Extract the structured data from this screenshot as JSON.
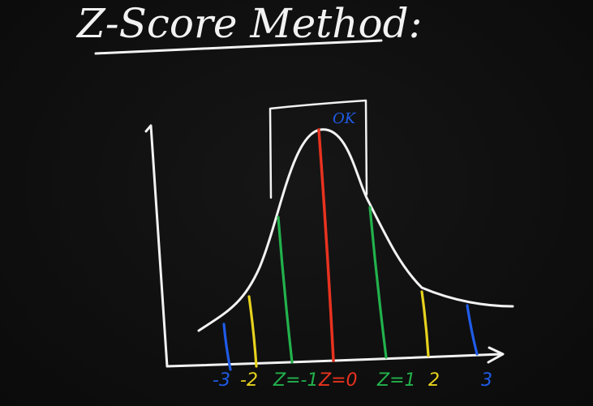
{
  "title": "Z-Score Method:",
  "box_label": "OK",
  "colors": {
    "background": "#0f0f0f",
    "chalk": "#f2f2f2",
    "red": "#e8321f",
    "green": "#22b24c",
    "yellow": "#e6d21e",
    "blue": "#1f5ce8"
  },
  "markers": [
    {
      "z": -3,
      "label": "-3",
      "color": "blue"
    },
    {
      "z": -2,
      "label": "-2",
      "color": "yellow"
    },
    {
      "z": -1,
      "label": "Z=-1",
      "color": "green"
    },
    {
      "z": 0,
      "label": "Z=0",
      "color": "red"
    },
    {
      "z": 1,
      "label": "Z=1",
      "color": "green"
    },
    {
      "z": 2,
      "label": "2",
      "color": "yellow"
    },
    {
      "z": 3,
      "label": "3",
      "color": "blue"
    }
  ]
}
